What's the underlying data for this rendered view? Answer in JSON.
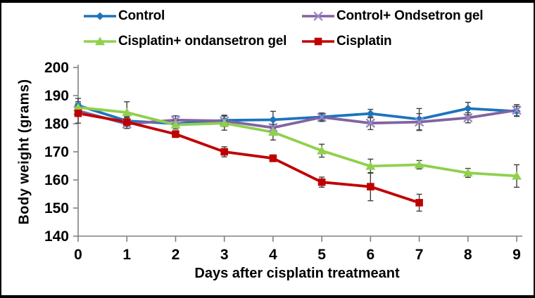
{
  "chart_data": {
    "type": "line",
    "title": "",
    "xlabel": "Days after cisplatin treatmeant",
    "ylabel": "Body weight (grams)",
    "x": [
      0,
      1,
      2,
      3,
      4,
      5,
      6,
      7,
      8,
      9
    ],
    "xticks": [
      "0",
      "1",
      "2",
      "3",
      "4",
      "5",
      "6",
      "7",
      "8",
      "9"
    ],
    "yticks": [
      "140",
      "150",
      "160",
      "170",
      "180",
      "190",
      "200"
    ],
    "xlim": [
      0,
      9
    ],
    "ylim": [
      140,
      200
    ],
    "grid": false,
    "legend_position": "top",
    "axis_color": "#808080",
    "error_bar_color": "#3F3F3F",
    "text_color": "#000000",
    "background": "#FFFFFF",
    "series": [
      {
        "name": "Control",
        "marker": "diamond",
        "color": "#1C74BC",
        "marker_color": "#1C74BC",
        "values": [
          186.5,
          181.0,
          180.0,
          181.2,
          181.4,
          182.4,
          183.6,
          181.6,
          185.4,
          184.4
        ],
        "errors": [
          2.5,
          1.5,
          1.2,
          1.8,
          3.0,
          1.2,
          1.5,
          3.8,
          2.2,
          1.8
        ]
      },
      {
        "name": "Control+ Ondsetron gel",
        "marker": "x",
        "color": "#8064A2",
        "marker_color": "#9A87C4",
        "values": [
          184.6,
          179.9,
          181.3,
          181.0,
          178.6,
          182.3,
          180.2,
          180.6,
          182.1,
          184.8
        ],
        "errors": [
          2.0,
          1.6,
          1.5,
          2.0,
          2.5,
          1.5,
          2.3,
          3.0,
          1.8,
          2.0
        ]
      },
      {
        "name": "Cisplatin+ ondansetron gel",
        "marker": "triangle-up",
        "color": "#90D04E",
        "marker_color": "#90D04E",
        "values": [
          185.8,
          184.0,
          179.6,
          180.2,
          177.0,
          170.4,
          164.9,
          165.4,
          162.5,
          161.4
        ],
        "errors": [
          2.0,
          3.8,
          1.5,
          2.5,
          2.8,
          2.3,
          2.5,
          1.5,
          1.6,
          4.0
        ]
      },
      {
        "name": "Cisplatin",
        "marker": "square",
        "color": "#C00000",
        "marker_color": "#C00000",
        "values": [
          183.7,
          180.6,
          176.3,
          170.0,
          167.7,
          159.2,
          157.6,
          151.9
        ],
        "errors": [
          3.5,
          1.6,
          1.2,
          1.8,
          1.2,
          1.8,
          5.0,
          3.0
        ]
      }
    ]
  }
}
